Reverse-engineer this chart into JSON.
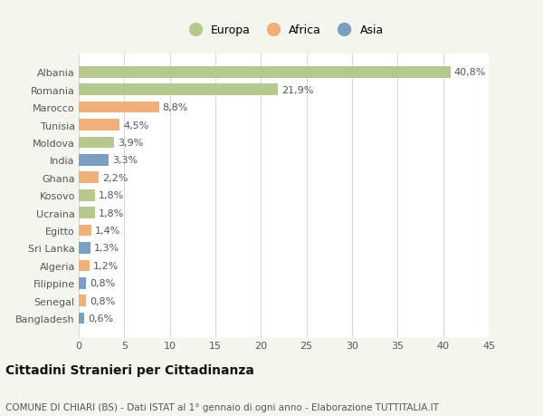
{
  "countries": [
    "Albania",
    "Romania",
    "Marocco",
    "Tunisia",
    "Moldova",
    "India",
    "Ghana",
    "Kosovo",
    "Ucraina",
    "Egitto",
    "Sri Lanka",
    "Algeria",
    "Filippine",
    "Senegal",
    "Bangladesh"
  ],
  "values": [
    40.8,
    21.9,
    8.8,
    4.5,
    3.9,
    3.3,
    2.2,
    1.8,
    1.8,
    1.4,
    1.3,
    1.2,
    0.8,
    0.8,
    0.6
  ],
  "labels": [
    "40,8%",
    "21,9%",
    "8,8%",
    "4,5%",
    "3,9%",
    "3,3%",
    "2,2%",
    "1,8%",
    "1,8%",
    "1,4%",
    "1,3%",
    "1,2%",
    "0,8%",
    "0,8%",
    "0,6%"
  ],
  "continents": [
    "Europa",
    "Europa",
    "Africa",
    "Africa",
    "Europa",
    "Asia",
    "Africa",
    "Europa",
    "Europa",
    "Africa",
    "Asia",
    "Africa",
    "Asia",
    "Africa",
    "Asia"
  ],
  "continent_colors": {
    "Europa": "#b5c98e",
    "Africa": "#f0b07a",
    "Asia": "#7a9fc0"
  },
  "legend_items": [
    "Europa",
    "Africa",
    "Asia"
  ],
  "legend_colors": [
    "#b5c98e",
    "#f0b07a",
    "#7a9fc0"
  ],
  "xlim": [
    0,
    45
  ],
  "xticks": [
    0,
    5,
    10,
    15,
    20,
    25,
    30,
    35,
    40,
    45
  ],
  "title": "Cittadini Stranieri per Cittadinanza",
  "subtitle": "COMUNE DI CHIARI (BS) - Dati ISTAT al 1° gennaio di ogni anno - Elaborazione TUTTITALIA.IT",
  "background_color": "#f5f5f0",
  "bar_background": "#ffffff",
  "grid_color": "#d8d8d8",
  "label_fontsize": 8,
  "ytick_fontsize": 8,
  "xtick_fontsize": 8,
  "title_fontsize": 10,
  "subtitle_fontsize": 7.5,
  "legend_fontsize": 9
}
